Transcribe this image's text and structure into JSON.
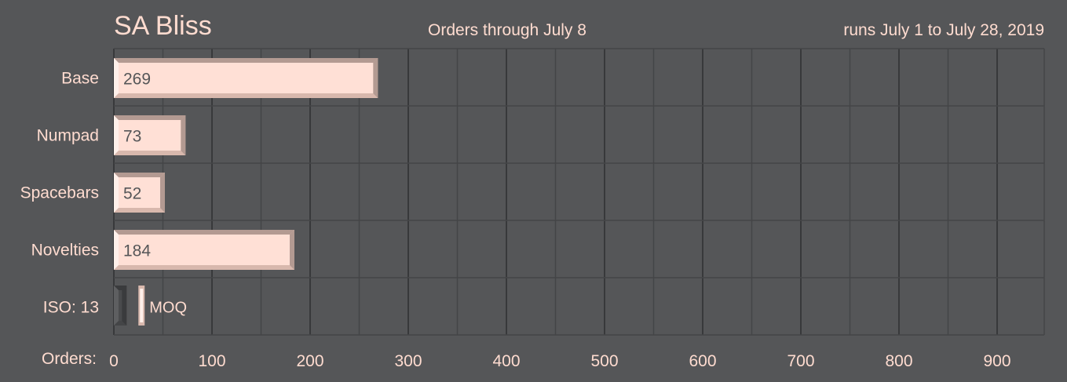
{
  "chart_data": {
    "type": "bar",
    "orientation": "horizontal",
    "title": "SA Bliss",
    "subtitle": "Orders through July 8",
    "note": "runs July 1 to July 28, 2019",
    "xlabel": "Orders:",
    "categories": [
      "Base",
      "Numpad",
      "Spacebars",
      "Novelties"
    ],
    "values": [
      269,
      73,
      52,
      184
    ],
    "iso": {
      "label": "ISO: 13",
      "value": 13
    },
    "moq": {
      "label": "MOQ",
      "value": 25
    },
    "xlim": [
      0,
      948
    ],
    "xticks": [
      0,
      100,
      200,
      300,
      400,
      500,
      600,
      700,
      800,
      900
    ],
    "grid": true,
    "colors": {
      "background": "#555658",
      "bar": "#ffe0d6",
      "bevel_dark": "#b39a92",
      "bevel_mid": "#d8b8ad",
      "text": "#ffdcd0",
      "value_text": "#555658",
      "grid": "#3f4042"
    }
  }
}
